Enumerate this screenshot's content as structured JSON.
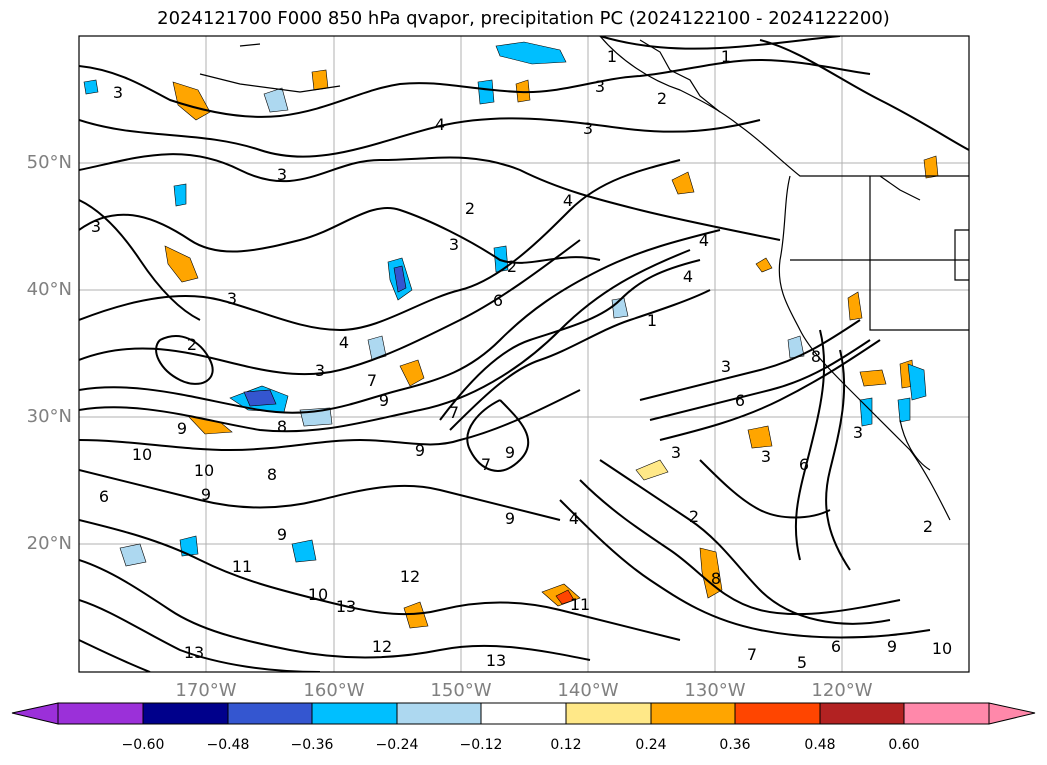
{
  "title": "2024121700 F000 850 hPa qvapor, precipitation PC (2024122100 - 2024122200)",
  "map": {
    "lat_labels": [
      "50°N",
      "40°N",
      "30°N",
      "20°N"
    ],
    "lon_labels": [
      "170°W",
      "160°W",
      "150°W",
      "140°W",
      "130°W",
      "120°W"
    ],
    "contour_labels": [
      "3",
      "3",
      "4",
      "3",
      "3",
      "1",
      "1",
      "2",
      "2",
      "6",
      "4",
      "4",
      "3",
      "2",
      "3",
      "3",
      "9",
      "7",
      "8",
      "9",
      "7",
      "9",
      "10",
      "10",
      "6",
      "9",
      "8",
      "9",
      "11",
      "9",
      "4",
      "7",
      "13",
      "10",
      "12",
      "13",
      "12",
      "13",
      "11",
      "7",
      "5",
      "6",
      "9",
      "10",
      "3",
      "6",
      "3",
      "8",
      "2",
      "3",
      "1",
      "6",
      "4",
      "2",
      "3",
      "4",
      "3",
      "8",
      "9",
      "2"
    ],
    "coast_color": "#000000",
    "contour_color": "#000000",
    "grid_color": "#b0b0b0"
  },
  "colorbar": {
    "ticks": [
      "−0.60",
      "−0.48",
      "−0.36",
      "−0.24",
      "−0.12",
      "0.12",
      "0.24",
      "0.36",
      "0.48",
      "0.60"
    ],
    "colors": [
      "#9b30d9",
      "#00008b",
      "#3456d0",
      "#00bfff",
      "#add8f0",
      "#ffffff",
      "#ffe888",
      "#ffa500",
      "#ff4500",
      "#b22222",
      "#ff88aa"
    ]
  }
}
